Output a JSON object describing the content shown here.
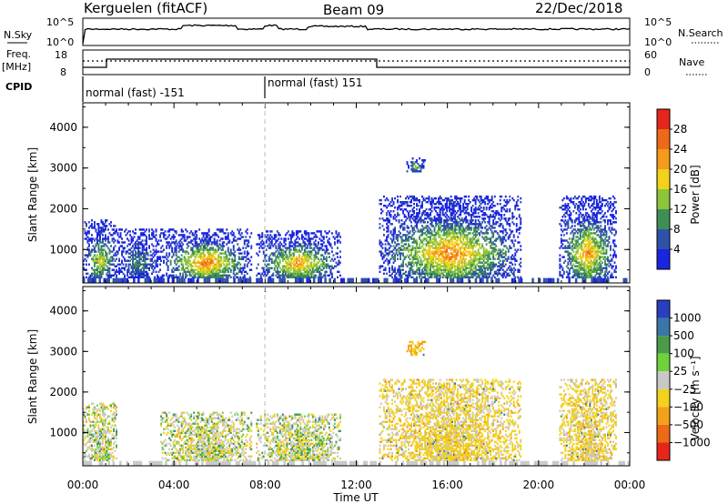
{
  "header": {
    "radar": "Kerguelen (fitACF)",
    "beam": "Beam 09",
    "date": "22/Dec/2018"
  },
  "top_panels": {
    "nsky_label": "N.Sky",
    "nsky_ticks": [
      "10^5",
      "10^0"
    ],
    "nsearch_label": "N.Search",
    "nsearch_ticks": [
      "10^5",
      "10^0"
    ],
    "freq_label_1": "Freq.",
    "freq_label_2": "[MHz]",
    "freq_ticks": [
      "18",
      "8"
    ],
    "nave_label": "Nave",
    "nave_ticks": [
      "60",
      "0"
    ],
    "cpid_label": "CPID",
    "cpid_modes": [
      "normal (fast) -151",
      "normal (fast) 151"
    ]
  },
  "chart_data": [
    {
      "type": "heatmap",
      "panel": "power",
      "ylabel": "Slant Range [km]",
      "ylim": [
        180,
        4600
      ],
      "yticks": [
        "1000",
        "2000",
        "3000",
        "4000"
      ],
      "xlim_hours": [
        0,
        24
      ],
      "xticks": [
        "00:00",
        "04:00",
        "08:00",
        "12:00",
        "16:00",
        "20:00",
        "00:00"
      ],
      "colorbar_label": "Power [dB]",
      "colorbar_ticks": [
        "4",
        "8",
        "12",
        "16",
        "20",
        "24",
        "28"
      ],
      "colorbar_colors": [
        "#1b24e0",
        "#2f51a8",
        "#3f8f55",
        "#8cc43c",
        "#f2d21a",
        "#f59a1c",
        "#ee6a16",
        "#e6261a"
      ],
      "echo_regions": [
        {
          "t_start": 0.0,
          "t_end": 1.5,
          "r_min": 300,
          "r_max": 1700,
          "peak_db": 20
        },
        {
          "t_start": 1.5,
          "t_end": 3.4,
          "r_min": 300,
          "r_max": 1500,
          "peak_db": 12
        },
        {
          "t_start": 3.4,
          "t_end": 7.4,
          "r_min": 300,
          "r_max": 1500,
          "peak_db": 28
        },
        {
          "t_start": 7.6,
          "t_end": 11.3,
          "r_min": 300,
          "r_max": 1450,
          "peak_db": 26
        },
        {
          "t_start": 13.0,
          "t_end": 19.2,
          "r_min": 300,
          "r_max": 2300,
          "peak_db": 28
        },
        {
          "t_start": 14.2,
          "t_end": 15.0,
          "r_min": 2900,
          "r_max": 3250,
          "peak_db": 16
        },
        {
          "t_start": 20.9,
          "t_end": 23.4,
          "r_min": 300,
          "r_max": 2300,
          "peak_db": 26
        }
      ]
    },
    {
      "type": "heatmap",
      "panel": "velocity",
      "ylabel": "Slant Range [km]",
      "ylim": [
        180,
        4600
      ],
      "yticks": [
        "1000",
        "2000",
        "3000",
        "4000"
      ],
      "xlim_hours": [
        0,
        24
      ],
      "xticks": [
        "00:00",
        "04:00",
        "08:00",
        "12:00",
        "16:00",
        "20:00",
        "00:00"
      ],
      "xlabel": "Time UT",
      "colorbar_label": "Velocity  [m s⁻¹]",
      "colorbar_ticks": [
        "1000",
        "500",
        "100",
        "25",
        "−25",
        "−100",
        "−500",
        "−1000"
      ],
      "colorbar_colors": [
        "#2a3fbf",
        "#3a76a8",
        "#4a9a4a",
        "#6ed23a",
        "#c8c8c8",
        "#f2d21a",
        "#f2a21a",
        "#ee6a16",
        "#e6261a"
      ],
      "echo_regions": [
        {
          "t_start": 0.0,
          "t_end": 1.5,
          "r_min": 300,
          "r_max": 1700,
          "v_dominant": 0
        },
        {
          "t_start": 3.4,
          "t_end": 7.4,
          "r_min": 300,
          "r_max": 1500,
          "v_dominant": 0
        },
        {
          "t_start": 7.6,
          "t_end": 11.3,
          "r_min": 300,
          "r_max": 1450,
          "v_dominant": 0
        },
        {
          "t_start": 13.0,
          "t_end": 19.2,
          "r_min": 300,
          "r_max": 2300,
          "v_dominant": -50
        },
        {
          "t_start": 14.2,
          "t_end": 15.0,
          "r_min": 2900,
          "r_max": 3250,
          "v_dominant": -100
        },
        {
          "t_start": 20.9,
          "t_end": 23.4,
          "r_min": 300,
          "r_max": 2300,
          "v_dominant": -50
        }
      ]
    }
  ]
}
